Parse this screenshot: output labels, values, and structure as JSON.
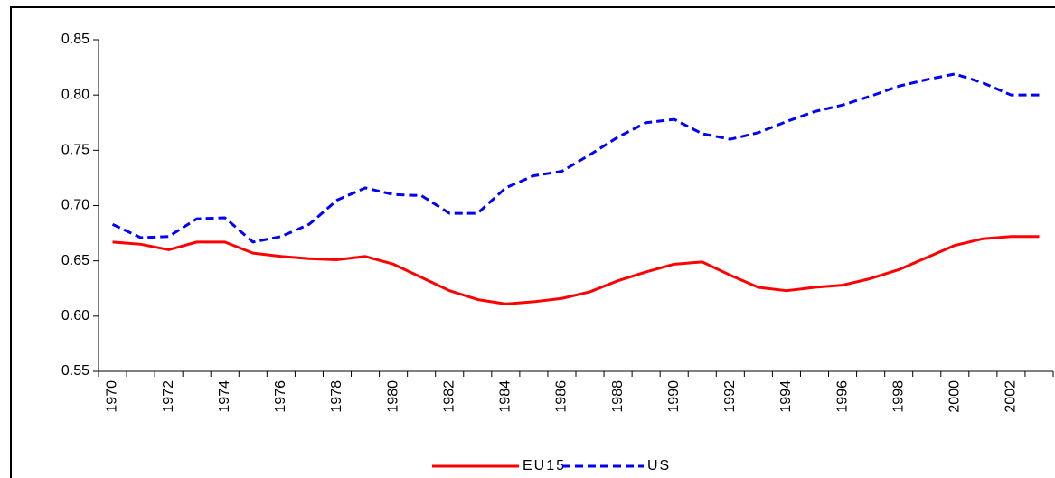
{
  "chart_data": {
    "type": "line",
    "categories": [
      "1970",
      null,
      "1972",
      null,
      "1974",
      null,
      "1976",
      null,
      "1978",
      null,
      "1980",
      null,
      "1982",
      null,
      "1984",
      null,
      "1986",
      null,
      "1988",
      null,
      "1990",
      null,
      "1992",
      null,
      "1994",
      null,
      "1996",
      null,
      "1998",
      null,
      "2000",
      null,
      "2002",
      null
    ],
    "series": [
      {
        "name": "EU15",
        "color": "#ff0000",
        "dash": false,
        "values": [
          0.667,
          0.665,
          0.66,
          0.667,
          0.667,
          0.657,
          0.654,
          0.652,
          0.651,
          0.654,
          0.647,
          0.635,
          0.623,
          0.615,
          0.611,
          0.613,
          0.616,
          0.622,
          0.632,
          0.64,
          0.647,
          0.649,
          0.637,
          0.626,
          0.623,
          0.626,
          0.628,
          0.634,
          0.642,
          0.653,
          0.664,
          0.67,
          0.672,
          0.672
        ]
      },
      {
        "name": "US",
        "color": "#0000ff",
        "dash": true,
        "values": [
          0.683,
          0.671,
          0.672,
          0.688,
          0.689,
          0.667,
          0.672,
          0.683,
          0.705,
          0.716,
          0.71,
          0.709,
          0.693,
          0.693,
          0.716,
          0.727,
          0.731,
          0.746,
          0.762,
          0.775,
          0.778,
          0.765,
          0.76,
          0.766,
          0.776,
          0.785,
          0.791,
          0.799,
          0.808,
          0.814,
          0.819,
          0.811,
          0.8,
          0.8
        ]
      }
    ],
    "ylim": [
      0.55,
      0.85
    ],
    "yticks": [
      0.55,
      {
        "value": 0.6,
        "label": "0.60"
      },
      0.65,
      {
        "value": 0.7,
        "label": "0.70"
      },
      0.75,
      {
        "value": 0.8,
        "label": "0.80"
      },
      0.85
    ],
    "grid": false,
    "legend": "bottom"
  }
}
